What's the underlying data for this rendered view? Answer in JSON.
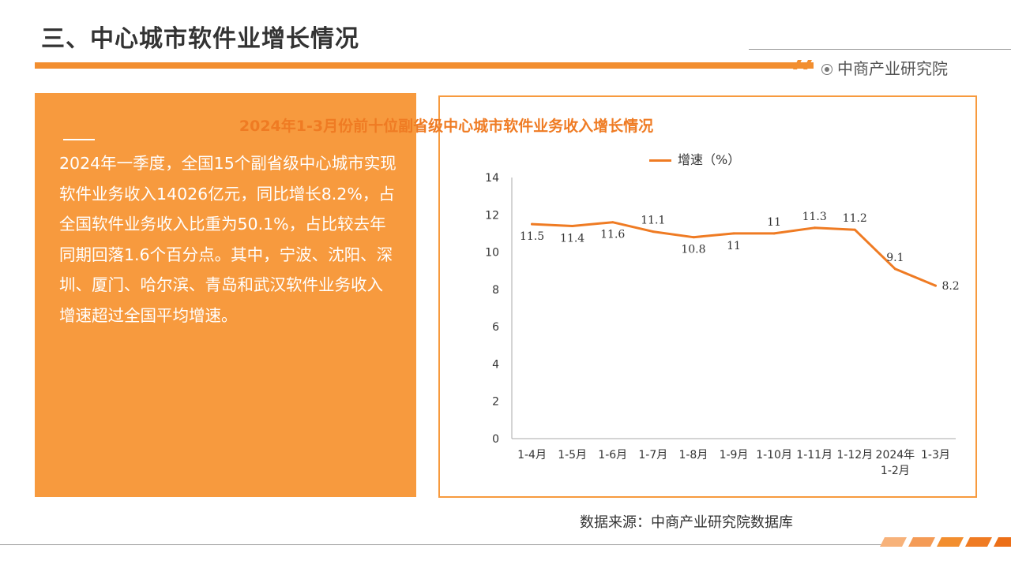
{
  "header": {
    "title": "三、中心城市软件业增长情况",
    "logo_text": "中商产业研究院"
  },
  "summary": {
    "text": "2024年一季度，全国15个副省级中心城市实现软件业务收入14026亿元，同比增长8.2%，占全国软件业务收入比重为50.1%，占比较去年同期回落1.6个百分点。其中，宁波、沈阳、深圳、厦门、哈尔滨、青岛和武汉软件业务收入增速超过全国平均增速。"
  },
  "chart_data": {
    "type": "line",
    "title": "2024年1-3月份前十位副省级中心城市软件业务收入增长情况",
    "categories": [
      "1-4月",
      "1-5月",
      "1-6月",
      "1-7月",
      "1-8月",
      "1-9月",
      "1-10月",
      "1-11月",
      "1-12月",
      "2024年 1-2月",
      "1-3月"
    ],
    "series": [
      {
        "name": "增速（%）",
        "values": [
          11.5,
          11.4,
          11.6,
          11.1,
          10.8,
          11,
          11,
          11.3,
          11.2,
          9.1,
          8.2
        ],
        "color": "#ef7b23"
      }
    ],
    "data_labels": [
      "11.5",
      "11.4",
      "11.6",
      "11.1",
      "10.8",
      "11",
      "11",
      "11.3",
      "11.2",
      "9.1",
      "8.2"
    ],
    "yticks": [
      "0",
      "2",
      "4",
      "6",
      "8",
      "10",
      "12",
      "14"
    ],
    "ylim": [
      0,
      14
    ],
    "grid": false,
    "legend_position": "top"
  },
  "footer": {
    "source": "数据来源：中商产业研究院数据库"
  },
  "colors": {
    "accent": "#f28e2f",
    "panel": "#f79a3e",
    "line": "#ef7b23"
  }
}
